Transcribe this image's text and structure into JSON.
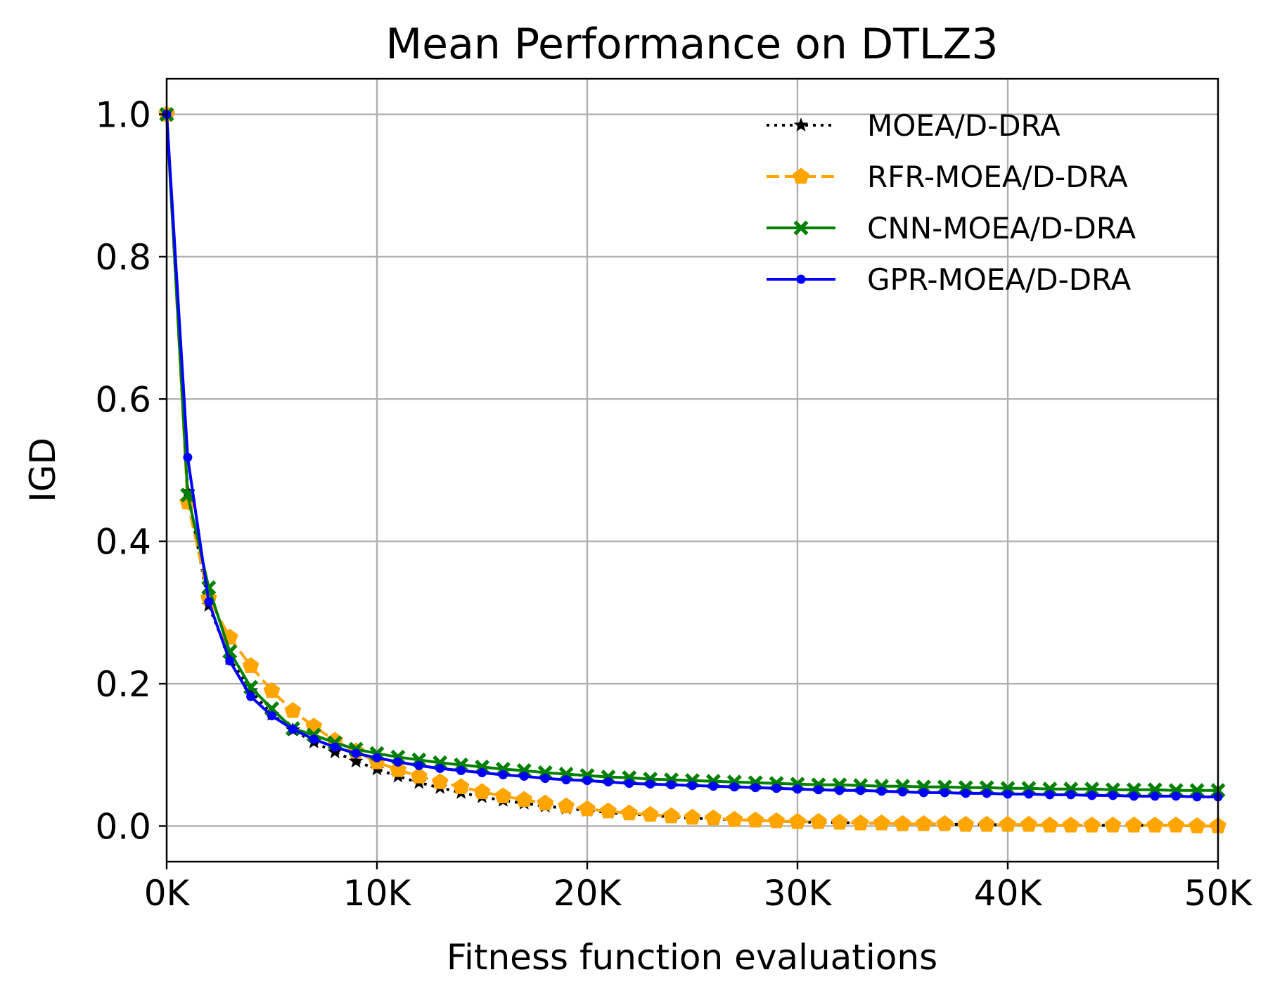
{
  "chart_data": {
    "type": "line",
    "title": "Mean Performance on DTLZ3",
    "xlabel": "Fitness function evaluations",
    "ylabel": "IGD",
    "xlim": [
      0,
      50000
    ],
    "ylim": [
      -0.05,
      1.05
    ],
    "xticks": [
      0,
      10000,
      20000,
      30000,
      40000,
      50000
    ],
    "xtick_labels": [
      "0K",
      "10K",
      "20K",
      "30K",
      "40K",
      "50K"
    ],
    "yticks": [
      0.0,
      0.2,
      0.4,
      0.6,
      0.8,
      1.0
    ],
    "ytick_labels": [
      "0.0",
      "0.2",
      "0.4",
      "0.6",
      "0.8",
      "1.0"
    ],
    "grid": true,
    "legend_position": "upper-right",
    "x": [
      0,
      1000,
      2000,
      3000,
      4000,
      5000,
      6000,
      7000,
      8000,
      9000,
      10000,
      11000,
      12000,
      13000,
      14000,
      15000,
      16000,
      17000,
      18000,
      19000,
      20000,
      21000,
      22000,
      23000,
      24000,
      25000,
      26000,
      27000,
      28000,
      29000,
      30000,
      31000,
      32000,
      33000,
      34000,
      35000,
      36000,
      37000,
      38000,
      39000,
      40000,
      41000,
      42000,
      43000,
      44000,
      45000,
      46000,
      47000,
      48000,
      49000,
      50000
    ],
    "series": [
      {
        "name": "MOEA/D-DRA",
        "color": "#000000",
        "linestyle": "dotted",
        "marker": "star",
        "values": [
          1.0,
          0.47,
          0.31,
          0.235,
          0.19,
          0.157,
          0.135,
          0.118,
          0.104,
          0.091,
          0.08,
          0.07,
          0.061,
          0.054,
          0.047,
          0.041,
          0.036,
          0.032,
          0.028,
          0.025,
          0.022,
          0.019,
          0.017,
          0.015,
          0.013,
          0.011,
          0.01,
          0.009,
          0.008,
          0.007,
          0.006,
          0.005,
          0.005,
          0.004,
          0.004,
          0.003,
          0.003,
          0.003,
          0.002,
          0.002,
          0.002,
          0.002,
          0.001,
          0.001,
          0.001,
          0.001,
          0.001,
          0.001,
          0.001,
          0.0,
          0.0
        ]
      },
      {
        "name": "RFR-MOEA/D-DRA",
        "color": "#ffa500",
        "linestyle": "dashed",
        "marker": "pentagon",
        "values": [
          1.0,
          0.455,
          0.32,
          0.265,
          0.225,
          0.19,
          0.162,
          0.14,
          0.12,
          0.105,
          0.09,
          0.079,
          0.07,
          0.062,
          0.055,
          0.048,
          0.042,
          0.037,
          0.032,
          0.028,
          0.024,
          0.021,
          0.018,
          0.016,
          0.014,
          0.012,
          0.011,
          0.009,
          0.008,
          0.007,
          0.006,
          0.006,
          0.005,
          0.004,
          0.004,
          0.003,
          0.003,
          0.003,
          0.002,
          0.002,
          0.002,
          0.002,
          0.001,
          0.001,
          0.001,
          0.001,
          0.001,
          0.001,
          0.001,
          0.0,
          0.0
        ]
      },
      {
        "name": "CNN-MOEA/D-DRA",
        "color": "#008000",
        "linestyle": "solid",
        "marker": "x-filled",
        "values": [
          1.0,
          0.465,
          0.335,
          0.245,
          0.195,
          0.165,
          0.137,
          0.128,
          0.117,
          0.108,
          0.102,
          0.097,
          0.093,
          0.089,
          0.086,
          0.083,
          0.08,
          0.078,
          0.075,
          0.073,
          0.071,
          0.069,
          0.068,
          0.066,
          0.065,
          0.064,
          0.063,
          0.062,
          0.061,
          0.06,
          0.059,
          0.058,
          0.058,
          0.057,
          0.056,
          0.056,
          0.055,
          0.055,
          0.054,
          0.054,
          0.053,
          0.053,
          0.052,
          0.052,
          0.052,
          0.051,
          0.051,
          0.051,
          0.05,
          0.05,
          0.05
        ]
      },
      {
        "name": "GPR-MOEA/D-DRA",
        "color": "#0000ff",
        "linestyle": "solid",
        "marker": "point",
        "values": [
          1.0,
          0.518,
          0.315,
          0.232,
          0.182,
          0.155,
          0.136,
          0.122,
          0.111,
          0.102,
          0.096,
          0.09,
          0.085,
          0.081,
          0.078,
          0.075,
          0.072,
          0.07,
          0.067,
          0.065,
          0.064,
          0.062,
          0.06,
          0.059,
          0.058,
          0.057,
          0.056,
          0.055,
          0.054,
          0.053,
          0.052,
          0.051,
          0.05,
          0.05,
          0.049,
          0.048,
          0.047,
          0.047,
          0.046,
          0.046,
          0.045,
          0.045,
          0.044,
          0.044,
          0.043,
          0.043,
          0.042,
          0.042,
          0.042,
          0.041,
          0.041
        ]
      }
    ]
  }
}
